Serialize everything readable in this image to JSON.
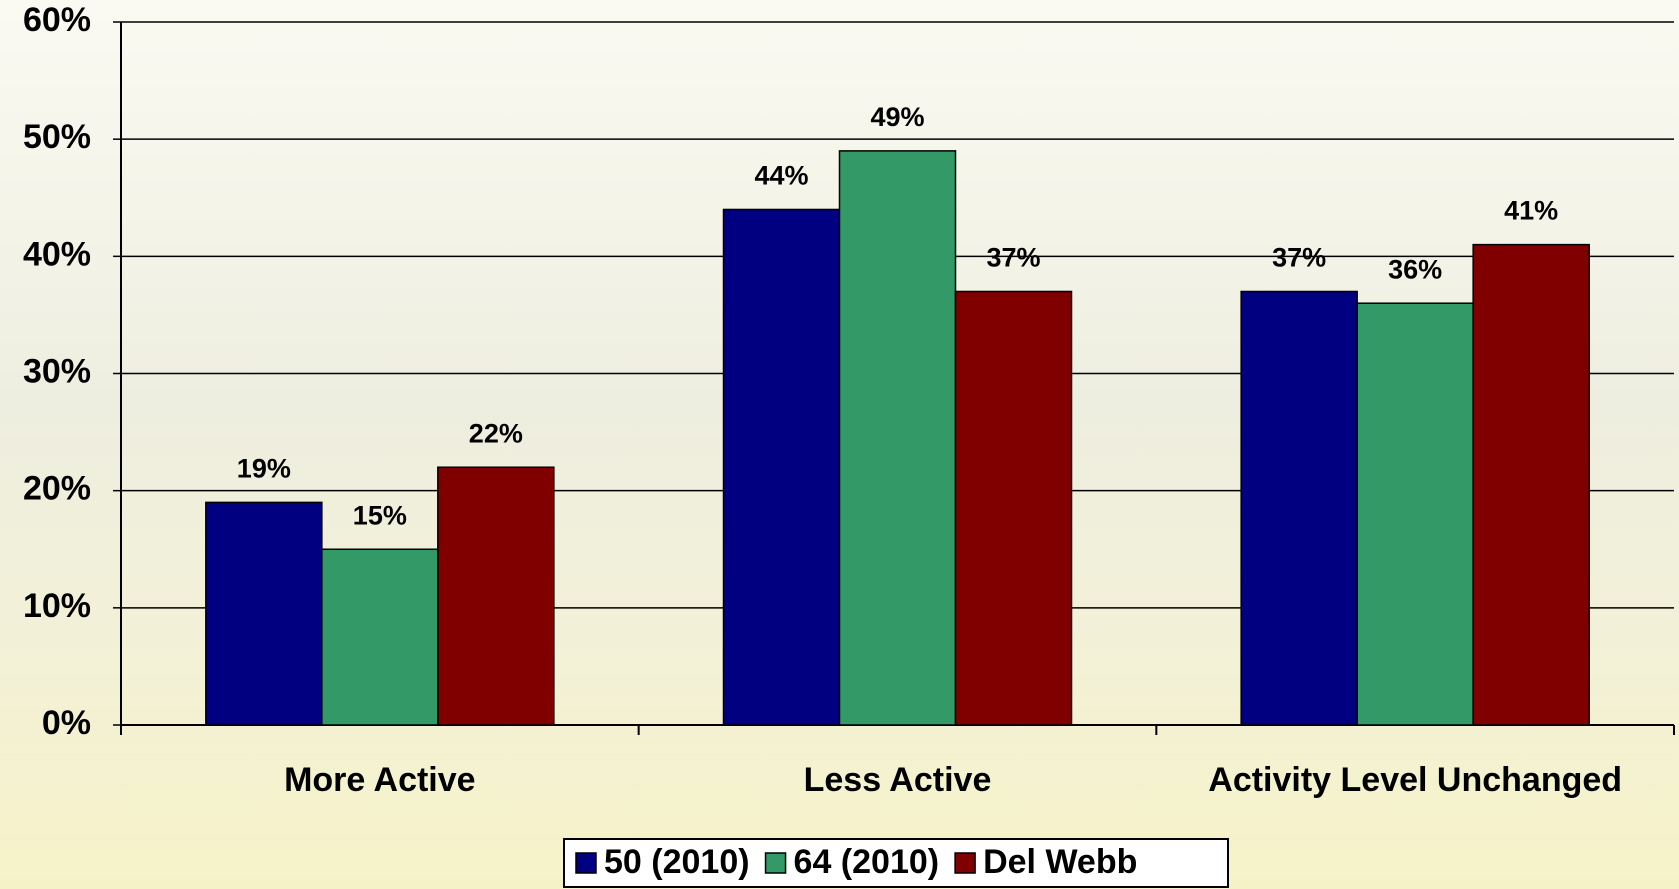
{
  "chart_data": {
    "type": "bar",
    "categories": [
      "More Active",
      "Less Active",
      "Activity Level Unchanged"
    ],
    "series": [
      {
        "name": "50 (2010)",
        "color": "#000080",
        "values": [
          19,
          44,
          37
        ],
        "value_labels": [
          "19%",
          "44%",
          "37%"
        ]
      },
      {
        "name": "64 (2010)",
        "color": "#339966",
        "values": [
          15,
          49,
          36
        ],
        "value_labels": [
          "15%",
          "49%",
          "36%"
        ]
      },
      {
        "name": "Del Webb",
        "color": "#800000",
        "values": [
          22,
          37,
          41
        ],
        "value_labels": [
          "22%",
          "37%",
          "41%"
        ]
      }
    ],
    "ylim": [
      0,
      60
    ],
    "yticks": [
      {
        "value": 0,
        "label": "0%"
      },
      {
        "value": 10,
        "label": "10%"
      },
      {
        "value": 20,
        "label": "20%"
      },
      {
        "value": 30,
        "label": "30%"
      },
      {
        "value": 40,
        "label": "40%"
      },
      {
        "value": 50,
        "label": "50%"
      },
      {
        "value": 60,
        "label": "60%"
      }
    ],
    "grid": true,
    "legend": "bottom"
  }
}
